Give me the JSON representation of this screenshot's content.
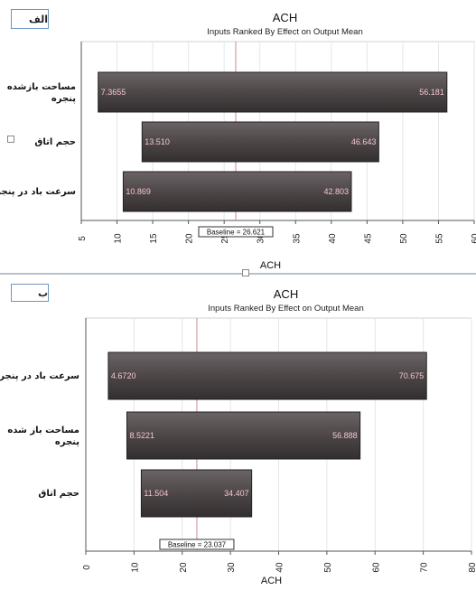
{
  "charts": [
    {
      "tag": "الف",
      "title": "ACH",
      "subtitle": "Inputs Ranked By Effect on Output Mean",
      "xlabel": "ACH",
      "baseline_label": "Baseline = 26.621"
    },
    {
      "tag": "ب",
      "title": "ACH",
      "subtitle": "Inputs Ranked By Effect on Output Mean",
      "xlabel": "ACH",
      "baseline_label": "Baseline = 23.037"
    }
  ],
  "chart_data": [
    {
      "type": "bar",
      "orientation": "horizontal",
      "title": "ACH",
      "subtitle": "Inputs Ranked By Effect on Output Mean",
      "xlabel": "ACH",
      "xlim": [
        5,
        60
      ],
      "xticks": [
        5,
        10,
        15,
        20,
        25,
        30,
        35,
        40,
        45,
        50,
        55,
        60
      ],
      "baseline": 26.621,
      "grid": true,
      "categories": [
        "مساحت بازشده پنجره",
        "حجم اتاق",
        "سرعت باد در پنجره"
      ],
      "low": [
        7.3655,
        13.51,
        10.869
      ],
      "high": [
        56.181,
        46.643,
        42.803
      ],
      "low_labels": [
        "7.3655",
        "13.510",
        "10.869"
      ],
      "high_labels": [
        "56.181",
        "46.643",
        "42.803"
      ],
      "bar_color": "#4a4445"
    },
    {
      "type": "bar",
      "orientation": "horizontal",
      "title": "ACH",
      "subtitle": "Inputs Ranked By Effect on Output Mean",
      "xlabel": "ACH",
      "xlim": [
        0,
        80
      ],
      "xticks": [
        0,
        10,
        20,
        30,
        40,
        50,
        60,
        70,
        80
      ],
      "baseline": 23.037,
      "grid": true,
      "categories": [
        "سرعت باد در پنجره",
        "مساحت باز شده پنجره",
        "حجم اتاق"
      ],
      "low": [
        4.672,
        8.5221,
        11.504
      ],
      "high": [
        70.675,
        56.888,
        34.407
      ],
      "low_labels": [
        "4.6720",
        "8.5221",
        "11.504"
      ],
      "high_labels": [
        "70.675",
        "56.888",
        "34.407"
      ],
      "bar_color": "#4a4445"
    }
  ]
}
